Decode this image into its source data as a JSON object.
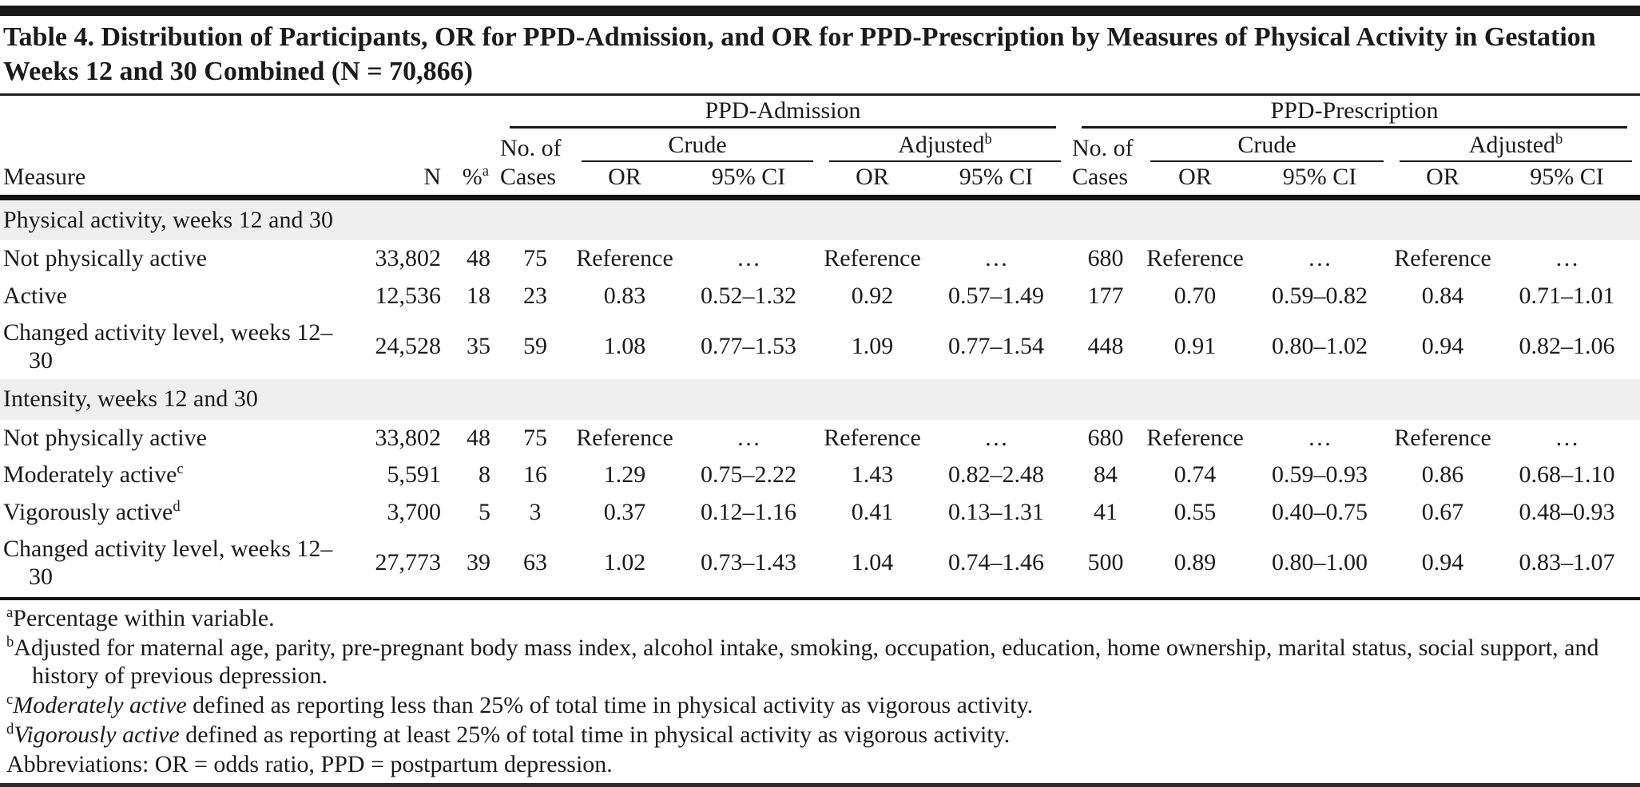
{
  "title": "Table 4. Distribution of Participants, OR for PPD-Admission, and OR for PPD-Prescription by Measures of Physical Activity in Gestation Weeks 12 and 30 Combined (N = 70,866)",
  "header": {
    "measure": "Measure",
    "n": "N",
    "pct": "%",
    "pct_sup": "a",
    "no_of": "No. of",
    "cases": "Cases",
    "ppd_admission": "PPD-Admission",
    "ppd_prescription": "PPD-Prescription",
    "crude": "Crude",
    "adjusted": "Adjusted",
    "adjusted_sup": "b",
    "or": "OR",
    "ci": "95% CI"
  },
  "sections": [
    {
      "label": "Physical activity, weeks 12 and 30",
      "rows": [
        {
          "measure": "Not physically active",
          "n": "33,802",
          "pct": "48",
          "adm_cases": "75",
          "adm_crude_or": "Reference",
          "adm_crude_ci": "…",
          "adm_adj_or": "Reference",
          "adm_adj_ci": "…",
          "presc_cases": "680",
          "presc_crude_or": "Reference",
          "presc_crude_ci": "…",
          "presc_adj_or": "Reference",
          "presc_adj_ci": "…"
        },
        {
          "measure": "Active",
          "n": "12,536",
          "pct": "18",
          "adm_cases": "23",
          "adm_crude_or": "0.83",
          "adm_crude_ci": "0.52–1.32",
          "adm_adj_or": "0.92",
          "adm_adj_ci": "0.57–1.49",
          "presc_cases": "177",
          "presc_crude_or": "0.70",
          "presc_crude_ci": "0.59–0.82",
          "presc_adj_or": "0.84",
          "presc_adj_ci": "0.71–1.01"
        },
        {
          "measure": "Changed activity level, weeks 12–30",
          "n": "24,528",
          "pct": "35",
          "adm_cases": "59",
          "adm_crude_or": "1.08",
          "adm_crude_ci": "0.77–1.53",
          "adm_adj_or": "1.09",
          "adm_adj_ci": "0.77–1.54",
          "presc_cases": "448",
          "presc_crude_or": "0.91",
          "presc_crude_ci": "0.80–1.02",
          "presc_adj_or": "0.94",
          "presc_adj_ci": "0.82–1.06"
        }
      ]
    },
    {
      "label": "Intensity, weeks 12 and 30",
      "rows": [
        {
          "measure": "Not physically active",
          "n": "33,802",
          "pct": "48",
          "adm_cases": "75",
          "adm_crude_or": "Reference",
          "adm_crude_ci": "…",
          "adm_adj_or": "Reference",
          "adm_adj_ci": "…",
          "presc_cases": "680",
          "presc_crude_or": "Reference",
          "presc_crude_ci": "…",
          "presc_adj_or": "Reference",
          "presc_adj_ci": "…"
        },
        {
          "measure": "Moderately active",
          "measure_sup": "c",
          "n": "5,591",
          "pct": "8",
          "adm_cases": "16",
          "adm_crude_or": "1.29",
          "adm_crude_ci": "0.75–2.22",
          "adm_adj_or": "1.43",
          "adm_adj_ci": "0.82–2.48",
          "presc_cases": "84",
          "presc_crude_or": "0.74",
          "presc_crude_ci": "0.59–0.93",
          "presc_adj_or": "0.86",
          "presc_adj_ci": "0.68–1.10"
        },
        {
          "measure": "Vigorously active",
          "measure_sup": "d",
          "n": "3,700",
          "pct": "5",
          "adm_cases": "3",
          "adm_crude_or": "0.37",
          "adm_crude_ci": "0.12–1.16",
          "adm_adj_or": "0.41",
          "adm_adj_ci": "0.13–1.31",
          "presc_cases": "41",
          "presc_crude_or": "0.55",
          "presc_crude_ci": "0.40–0.75",
          "presc_adj_or": "0.67",
          "presc_adj_ci": "0.48–0.93"
        },
        {
          "measure": "Changed activity level, weeks 12–30",
          "n": "27,773",
          "pct": "39",
          "adm_cases": "63",
          "adm_crude_or": "1.02",
          "adm_crude_ci": "0.73–1.43",
          "adm_adj_or": "1.04",
          "adm_adj_ci": "0.74–1.46",
          "presc_cases": "500",
          "presc_crude_or": "0.89",
          "presc_crude_ci": "0.80–1.00",
          "presc_adj_or": "0.94",
          "presc_adj_ci": "0.83–1.07"
        }
      ]
    }
  ],
  "footnotes": [
    {
      "sup": "a",
      "text": "Percentage within variable."
    },
    {
      "sup": "b",
      "text": "Adjusted for maternal age, parity, pre-pregnant body mass index, alcohol intake, smoking, occupation, education, home ownership, marital status, social support, and history of previous depression."
    },
    {
      "sup": "c",
      "italic": "Moderately active",
      "text": " defined as reporting less than 25% of total time in physical activity as vigorous activity."
    },
    {
      "sup": "d",
      "italic": "Vigorously active",
      "text": " defined as reporting at least 25% of total time in physical activity as vigorous activity."
    },
    {
      "text": "Abbreviations: OR = odds ratio, PPD = postpartum depression."
    }
  ]
}
